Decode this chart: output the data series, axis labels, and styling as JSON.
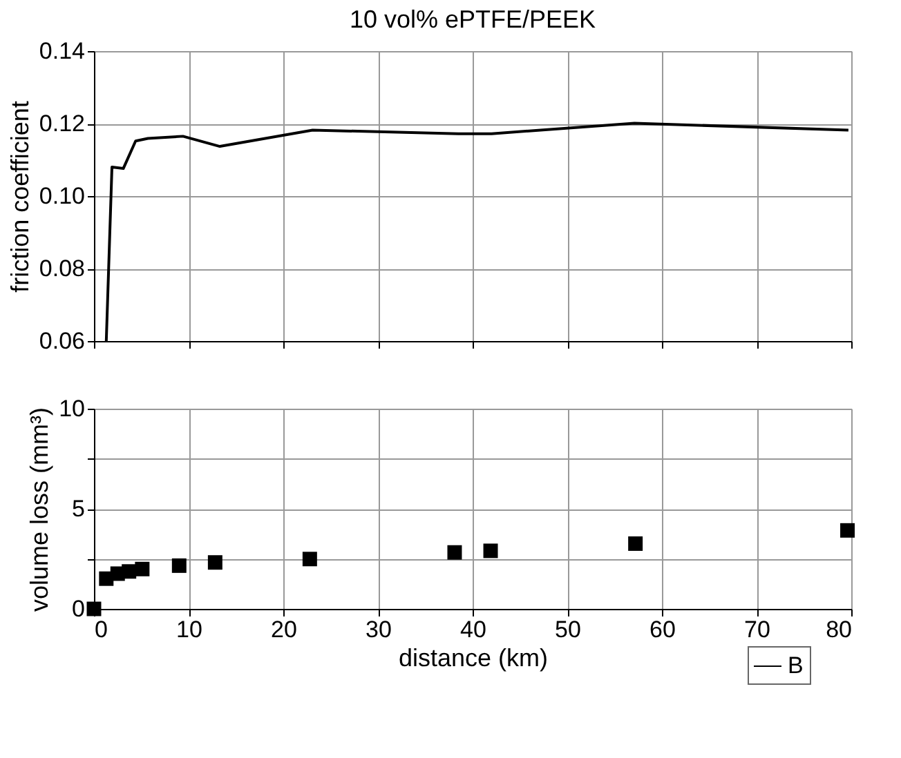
{
  "chart_data": [
    {
      "type": "line",
      "title": "10 vol% ePTFE/PEEK",
      "ylabel": "friction coefficient",
      "x": [
        1.3,
        1.9,
        3.1,
        4.4,
        5.7,
        9.4,
        13.3,
        23.1,
        38.5,
        42,
        57.1,
        79.7
      ],
      "series": [
        {
          "name": "B",
          "color": "#000000",
          "values": [
            0.06,
            0.108,
            0.1076,
            0.1152,
            0.1159,
            0.1165,
            0.1137,
            0.1182,
            0.1172,
            0.1172,
            0.1201,
            0.1182
          ]
        }
      ],
      "xlim": [
        0,
        80
      ],
      "xticks": [
        0,
        10,
        20,
        30,
        40,
        50,
        60,
        70,
        80
      ],
      "ylim": [
        0.06,
        0.14
      ],
      "yticks": [
        0.06,
        0.08,
        {
          "value": 0.1,
          "label": "0.10"
        },
        0.12,
        0.14
      ],
      "tick_labels": "y",
      "grid": true,
      "legend": "bottom right",
      "line_style": "solid"
    },
    {
      "type": "scatter",
      "xlabel": "distance (km)",
      "ylabel": "volume loss (mm³)",
      "x": [
        0,
        1.3,
        2.5,
        3.7,
        5.1,
        9,
        12.8,
        22.8,
        38.1,
        41.9,
        57.2,
        79.6
      ],
      "values": [
        0,
        1.51,
        1.76,
        1.87,
        1.99,
        2.16,
        2.32,
        2.49,
        2.82,
        2.9,
        3.26,
        3.92
      ],
      "color": "#000000",
      "marker": "square",
      "xlim": [
        0,
        80
      ],
      "xticks": [
        0,
        10,
        20,
        30,
        40,
        50,
        60,
        70,
        80
      ],
      "ylim": [
        0,
        10
      ],
      "yticks": [
        0,
        {
          "value": 2.5,
          "label": null
        },
        5,
        {
          "value": 7.5,
          "label": null
        },
        10
      ],
      "grid": true
    }
  ]
}
